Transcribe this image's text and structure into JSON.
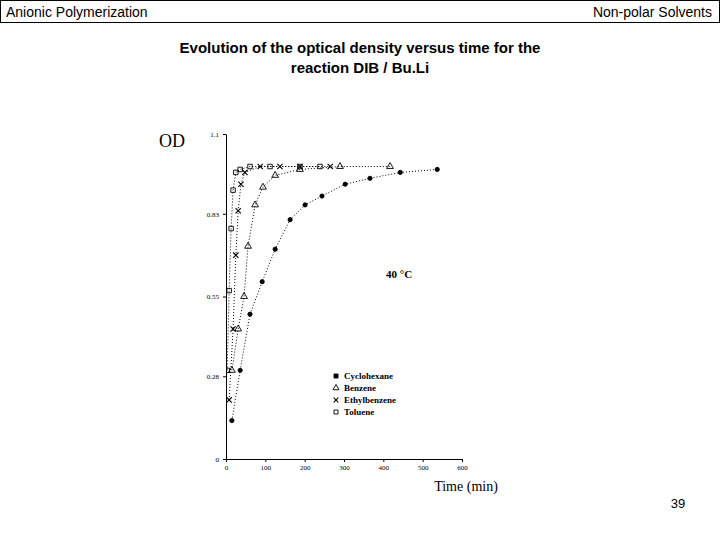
{
  "slide": {
    "header_left": "Anionic Polymerization",
    "header_right": "Non-polar Solvents",
    "page_number": 39
  },
  "chart_data": {
    "type": "line",
    "title": "Evolution of the optical density versus time for the\nreaction DIB / Bu.Li",
    "x_label": "Time (min)",
    "y_label": "OD",
    "annotations": [
      "40 °C"
    ],
    "xlim": [
      0,
      600
    ],
    "ylim": [
      0,
      1.1
    ],
    "xticks": [
      0,
      100,
      200,
      300,
      400,
      500,
      600
    ],
    "yticks": [
      0,
      0.28,
      0.55,
      0.83,
      1.1
    ],
    "grid": false,
    "legend": "lower right",
    "series": [
      {
        "name": "Cyclohexane",
        "color": "#000000",
        "marker": "circle",
        "line_style": "dotted",
        "x": [
          15,
          36,
          61,
          92,
          125,
          163,
          201,
          244,
          303,
          366,
          443,
          537
        ],
        "values": [
          0.13,
          0.3,
          0.49,
          0.6,
          0.71,
          0.81,
          0.86,
          0.89,
          0.93,
          0.95,
          0.97,
          0.98
        ]
      },
      {
        "name": "Benzene",
        "color": "#000000",
        "marker": "triangle",
        "line_style": "dotted",
        "x": [
          15,
          31,
          46,
          56,
          74,
          94,
          125,
          188,
          290,
          417
        ],
        "values": [
          0.3,
          0.44,
          0.55,
          0.72,
          0.86,
          0.92,
          0.96,
          0.98,
          0.99,
          0.99
        ]
      },
      {
        "name": "Ethylbenzene",
        "color": "#000000",
        "marker": "x",
        "line_style": "dotted",
        "x": [
          8,
          18,
          25,
          31,
          38,
          48,
          87,
          137,
          188,
          265
        ],
        "values": [
          0.2,
          0.44,
          0.69,
          0.84,
          0.93,
          0.97,
          0.99,
          0.99,
          0.99,
          0.99
        ]
      },
      {
        "name": "Toluene",
        "color": "#000000",
        "marker": "square",
        "line_style": "dotted",
        "x": [
          3,
          8,
          13,
          18,
          25,
          36,
          61,
          112,
          188,
          239
        ],
        "values": [
          0.3,
          0.57,
          0.78,
          0.91,
          0.97,
          0.98,
          0.99,
          0.99,
          0.99,
          0.99
        ]
      }
    ]
  }
}
